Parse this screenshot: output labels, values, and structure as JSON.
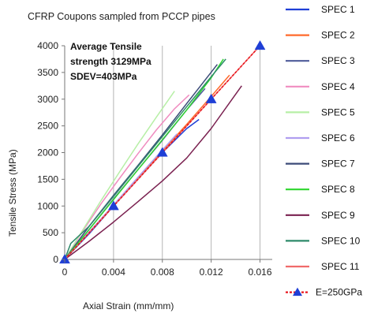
{
  "chart_data": {
    "type": "line",
    "title": "CFRP Coupons sampled from PCCP pipes",
    "xlabel": "Axial Strain (mm/mm)",
    "ylabel": "Tensile Stress (MPa)",
    "xlim": [
      0,
      0.017
    ],
    "ylim": [
      0,
      4000
    ],
    "x_ticks": [
      0,
      0.004,
      0.008,
      0.012,
      0.016
    ],
    "x_tick_labels": [
      "0",
      "0.004",
      "0.008",
      "0.012",
      "0.016"
    ],
    "y_ticks": [
      0,
      500,
      1000,
      1500,
      2000,
      2500,
      3000,
      3500,
      4000
    ],
    "y_tick_labels": [
      "0",
      "500",
      "1000",
      "1500",
      "2000",
      "2500",
      "3000",
      "3500",
      "4000"
    ],
    "grid": "vertical",
    "legend_position": "right",
    "annotation_lines": [
      "Average Tensile",
      "strength 3129MPa",
      "SDEV=403MPa"
    ],
    "series": [
      {
        "name": "SPEC 1",
        "color": "#1f3fd6",
        "x": [
          0,
          0.002,
          0.004,
          0.006,
          0.008,
          0.01,
          0.011
        ],
        "y": [
          0,
          480,
          1000,
          1500,
          2000,
          2450,
          2620
        ]
      },
      {
        "name": "SPEC 2",
        "color": "#ff6a2b",
        "x": [
          0,
          0.002,
          0.004,
          0.006,
          0.008,
          0.01,
          0.012,
          0.0135
        ],
        "y": [
          0,
          500,
          1000,
          1520,
          2030,
          2530,
          3050,
          3450
        ]
      },
      {
        "name": "SPEC 3",
        "color": "#4f5c9a",
        "x": [
          0,
          0.002,
          0.004,
          0.006,
          0.008,
          0.01,
          0.0115
        ],
        "y": [
          0,
          560,
          1130,
          1680,
          2230,
          2800,
          3200
        ]
      },
      {
        "name": "SPEC 4",
        "color": "#f08cc0",
        "x": [
          0,
          0.0015,
          0.003,
          0.0045,
          0.006,
          0.0075,
          0.009,
          0.0102
        ],
        "y": [
          0,
          540,
          1050,
          1520,
          1980,
          2420,
          2820,
          3080
        ]
      },
      {
        "name": "SPEC 5",
        "color": "#b7efa6",
        "x": [
          0,
          0.0015,
          0.003,
          0.0045,
          0.006,
          0.0075,
          0.009
        ],
        "y": [
          0,
          560,
          1110,
          1640,
          2160,
          2660,
          3150
        ]
      },
      {
        "name": "SPEC 6",
        "color": "#b09ef0",
        "x": [
          0,
          0.002,
          0.004,
          0.006,
          0.008,
          0.0092
        ],
        "y": [
          0,
          510,
          1020,
          1540,
          2050,
          2350
        ]
      },
      {
        "name": "SPEC 7",
        "color": "#3c4b78",
        "x": [
          0,
          0.002,
          0.004,
          0.006,
          0.008,
          0.01,
          0.0125
        ],
        "y": [
          0,
          620,
          1200,
          1760,
          2330,
          2920,
          3650
        ]
      },
      {
        "name": "SPEC 8",
        "color": "#2ed62e",
        "x": [
          0,
          0.002,
          0.004,
          0.006,
          0.008,
          0.01,
          0.012,
          0.013
        ],
        "y": [
          0,
          560,
          1120,
          1680,
          2240,
          2800,
          3400,
          3750
        ]
      },
      {
        "name": "SPEC 9",
        "color": "#7a2150",
        "x": [
          0,
          0.002,
          0.004,
          0.006,
          0.008,
          0.01,
          0.012,
          0.0145
        ],
        "y": [
          0,
          340,
          700,
          1080,
          1470,
          1900,
          2450,
          3250
        ]
      },
      {
        "name": "SPEC 10",
        "color": "#2d8a6a",
        "x": [
          0,
          0.0005,
          0.002,
          0.004,
          0.006,
          0.008,
          0.01,
          0.012,
          0.0132
        ],
        "y": [
          0,
          300,
          620,
          1180,
          1740,
          2300,
          2860,
          3420,
          3750
        ]
      },
      {
        "name": "SPEC 11",
        "color": "#f06a6a",
        "x": [
          0,
          0.002,
          0.004,
          0.006,
          0.008,
          0.01,
          0.012,
          0.014,
          0.016
        ],
        "y": [
          0,
          500,
          1000,
          1500,
          2000,
          2500,
          3000,
          3500,
          4000
        ]
      },
      {
        "name": "E=250GPa",
        "color": "#e8161e",
        "marker": "triangle",
        "marker_color": "#1f3fd6",
        "dashed": true,
        "x": [
          0,
          0.004,
          0.008,
          0.012,
          0.016
        ],
        "y": [
          0,
          1000,
          2000,
          3000,
          4000
        ]
      }
    ]
  }
}
